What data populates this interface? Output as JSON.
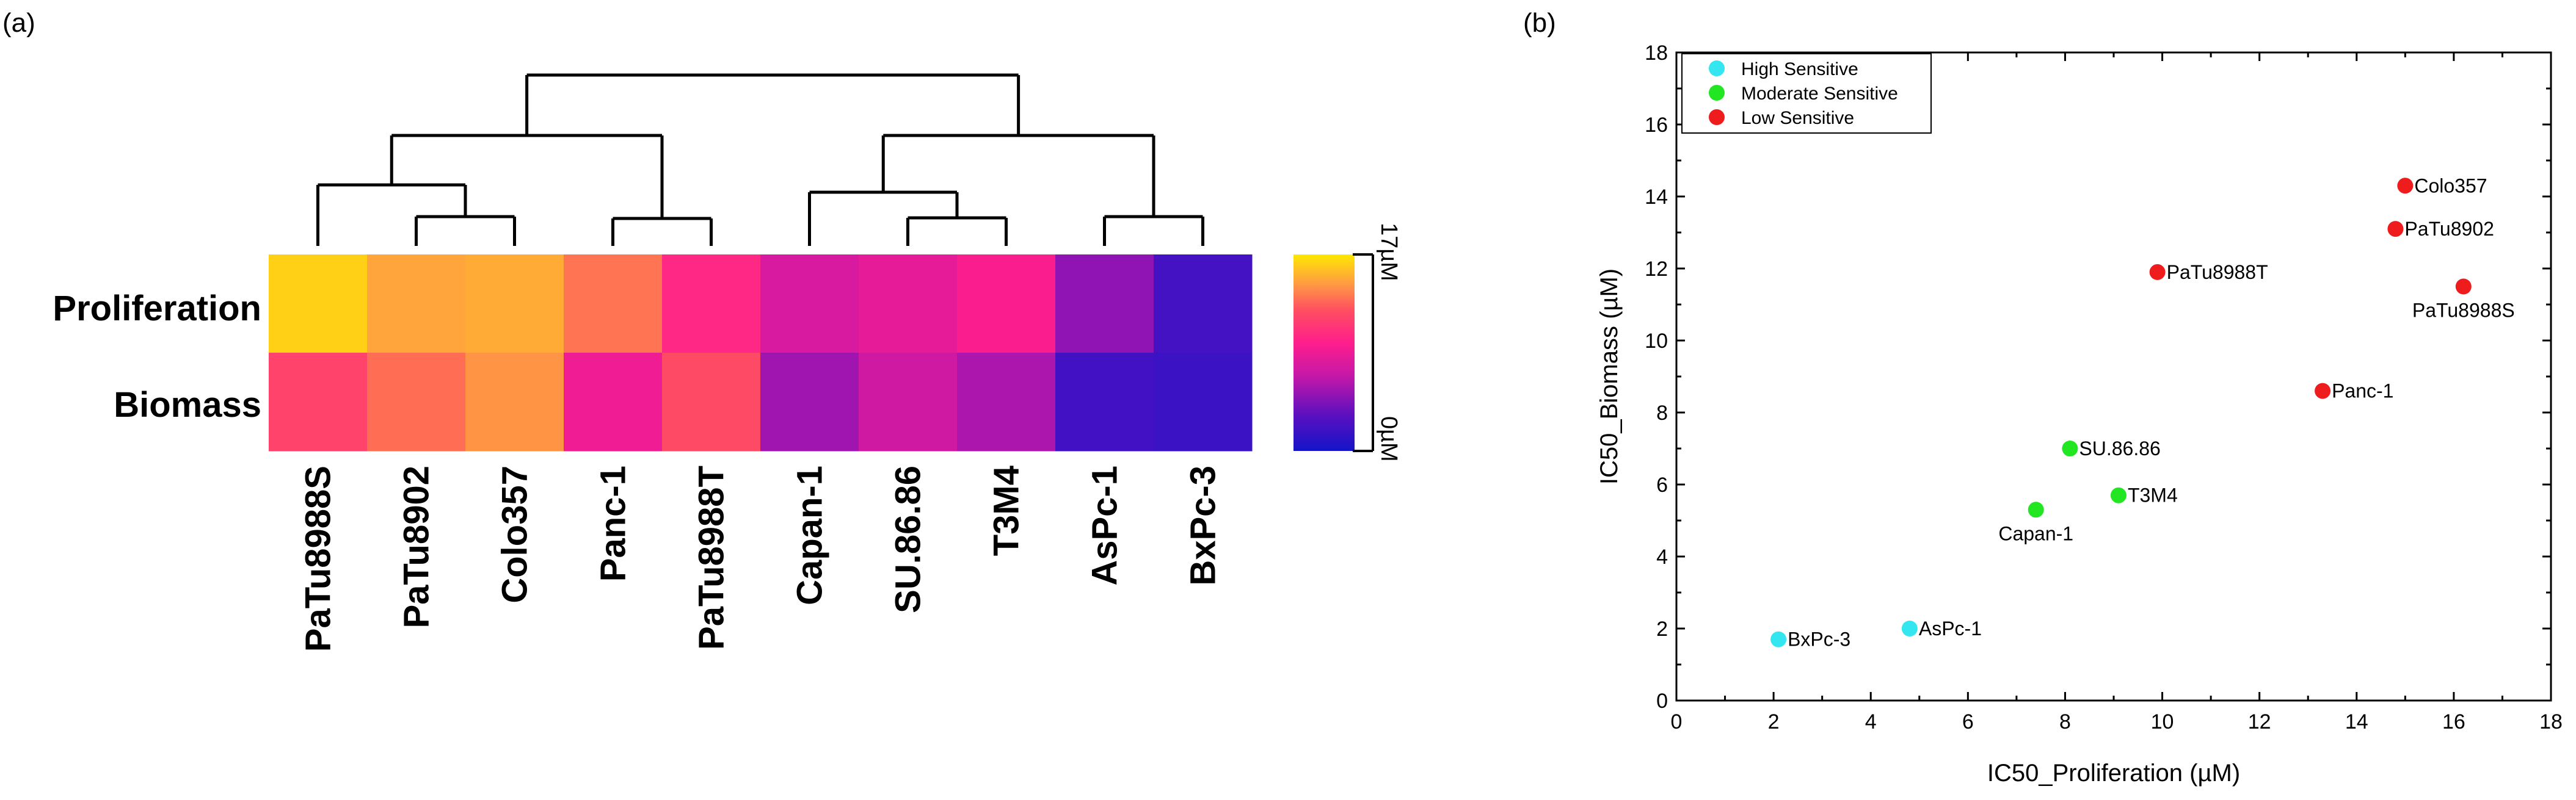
{
  "chart_data": [
    {
      "panel": "(a)",
      "type": "heatmap",
      "rows": [
        "Proliferation",
        "Biomass"
      ],
      "columns": [
        "PaTu8988S",
        "PaTu8902",
        "Colo357",
        "Panc-1",
        "PaTu8988T",
        "Capan-1",
        "SU.86.86",
        "T3M4",
        "AsPc-1",
        "BxPc-3"
      ],
      "values": [
        [
          16.2,
          14.8,
          15.0,
          13.3,
          9.9,
          7.4,
          8.1,
          9.1,
          4.8,
          2.1
        ],
        [
          11.5,
          13.1,
          14.3,
          8.6,
          11.9,
          5.3,
          7.0,
          5.7,
          2.0,
          1.7
        ]
      ],
      "colorbar": {
        "min_label": "0µM",
        "max_label": "17µM",
        "min": 0,
        "max": 17
      }
    },
    {
      "panel": "(b)",
      "type": "scatter",
      "xlabel": "IC50_Proliferation (µM)",
      "ylabel": "IC50_Biomass (µM)",
      "xlim": [
        0,
        18
      ],
      "ylim": [
        0,
        18
      ],
      "xticks": [
        0,
        2,
        4,
        6,
        8,
        10,
        12,
        14,
        16,
        18
      ],
      "yticks": [
        0,
        2,
        4,
        6,
        8,
        10,
        12,
        14,
        16,
        18
      ],
      "legend_position": "top-left",
      "series": [
        {
          "name": "High Sensitive",
          "color": "#33e6f0",
          "points": [
            {
              "label": "BxPc-3",
              "x": 2.1,
              "y": 1.7
            },
            {
              "label": "AsPc-1",
              "x": 4.8,
              "y": 2.0
            }
          ]
        },
        {
          "name": "Moderate Sensitive",
          "color": "#22e622",
          "points": [
            {
              "label": "SU.86.86",
              "x": 8.1,
              "y": 7.0
            },
            {
              "label": "Capan-1",
              "x": 7.4,
              "y": 5.3
            },
            {
              "label": "T3M4",
              "x": 9.1,
              "y": 5.7
            }
          ]
        },
        {
          "name": "Low Sensitive",
          "color": "#ee1c1c",
          "points": [
            {
              "label": "Colo357",
              "x": 15.0,
              "y": 14.3
            },
            {
              "label": "PaTu8902",
              "x": 14.8,
              "y": 13.1
            },
            {
              "label": "PaTu8988T",
              "x": 9.9,
              "y": 11.9
            },
            {
              "label": "PaTu8988S",
              "x": 16.2,
              "y": 11.5
            },
            {
              "label": "Panc-1",
              "x": 13.3,
              "y": 8.6
            }
          ]
        }
      ]
    }
  ]
}
